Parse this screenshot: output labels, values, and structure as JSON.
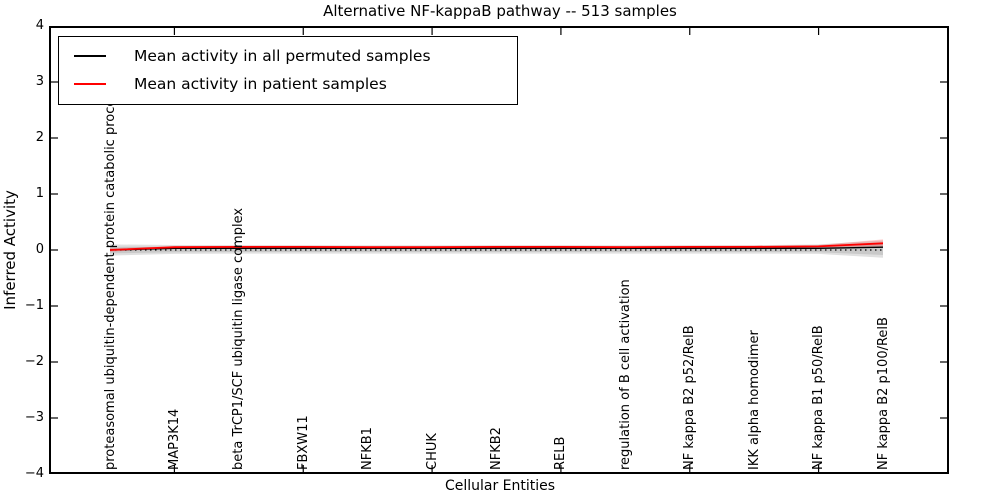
{
  "figure": {
    "title": "Alternative NF-kappaB pathway -- 513 samples"
  },
  "legend": {
    "items": [
      {
        "label": "Mean activity in all permuted samples",
        "color": "#000000"
      },
      {
        "label": "Mean activity in patient samples",
        "color": "#ff0000"
      }
    ]
  },
  "axes": {
    "ylabel": "Inferred Activity",
    "xlabel": "Cellular Entities"
  },
  "chart_data": {
    "type": "line",
    "title": "Alternative NF-kappaB pathway -- 513 samples",
    "xlabel": "Cellular Entities",
    "ylabel": "Inferred Activity",
    "ylim": [
      -4,
      4
    ],
    "grid": false,
    "legend_position": "upper left",
    "yticks": [
      {
        "v": 4,
        "label": "4"
      },
      {
        "v": 3,
        "label": "3"
      },
      {
        "v": 2,
        "label": "2"
      },
      {
        "v": 1,
        "label": "1"
      },
      {
        "v": 0,
        "label": "0"
      },
      {
        "v": -1,
        "label": "−1"
      },
      {
        "v": -2,
        "label": "−2"
      },
      {
        "v": -3,
        "label": "−3"
      },
      {
        "v": -4,
        "label": "−4"
      }
    ],
    "categories": [
      "proteasomal ubiquitin-dependent protein catabolic process",
      "MAP3K14",
      "beta TrCP1/SCF ubiquitin ligase complex",
      "FBXW11",
      "NFKB1",
      "CHUK",
      "NFKB2",
      "RELB",
      "regulation of B cell activation",
      "NF kappa B2 p52/RelB",
      "IKK alpha homodimer",
      "NF kappa B1 p50/RelB",
      "NF kappa B2 p100/RelB"
    ],
    "xtick_mark_positions": [
      1,
      3,
      5,
      7,
      9,
      11
    ],
    "zero_line": {
      "y": 0,
      "style": "dotted",
      "color": "#000000"
    },
    "series": [
      {
        "name": "Mean activity in all permuted samples",
        "color": "#000000",
        "width": 1.3,
        "values": [
          0.0,
          0.03,
          0.03,
          0.03,
          0.03,
          0.03,
          0.03,
          0.03,
          0.03,
          0.03,
          0.03,
          0.03,
          0.05
        ]
      },
      {
        "name": "Mean activity in patient samples",
        "color": "#ff0000",
        "width": 1.8,
        "values": [
          0.0,
          0.05,
          0.055,
          0.055,
          0.05,
          0.05,
          0.055,
          0.055,
          0.05,
          0.055,
          0.055,
          0.065,
          0.12
        ]
      }
    ],
    "bands": [
      {
        "name": "permuted-confidence-outer",
        "color": "rgba(0,0,0,0.12)",
        "upper": [
          0.1,
          0.09,
          0.085,
          0.085,
          0.085,
          0.085,
          0.085,
          0.085,
          0.085,
          0.085,
          0.085,
          0.1,
          0.17
        ],
        "lower": [
          -0.1,
          -0.07,
          -0.065,
          -0.065,
          -0.065,
          -0.065,
          -0.065,
          -0.065,
          -0.065,
          -0.065,
          -0.065,
          -0.07,
          -0.14
        ]
      },
      {
        "name": "permuted-confidence-inner",
        "color": "rgba(0,0,0,0.10)",
        "upper": [
          0.06,
          0.055,
          0.05,
          0.05,
          0.05,
          0.05,
          0.05,
          0.05,
          0.05,
          0.05,
          0.05,
          0.06,
          0.11
        ],
        "lower": [
          -0.06,
          -0.04,
          -0.035,
          -0.035,
          -0.035,
          -0.035,
          -0.035,
          -0.035,
          -0.035,
          -0.035,
          -0.035,
          -0.04,
          -0.09
        ]
      },
      {
        "name": "patient-confidence",
        "color": "rgba(255,0,0,0.20)",
        "upper": [
          0.03,
          0.07,
          0.075,
          0.075,
          0.07,
          0.07,
          0.075,
          0.075,
          0.07,
          0.075,
          0.08,
          0.09,
          0.19
        ],
        "lower": [
          -0.03,
          0.03,
          0.035,
          0.035,
          0.03,
          0.03,
          0.035,
          0.035,
          0.03,
          0.035,
          0.035,
          0.04,
          0.06
        ]
      }
    ]
  }
}
